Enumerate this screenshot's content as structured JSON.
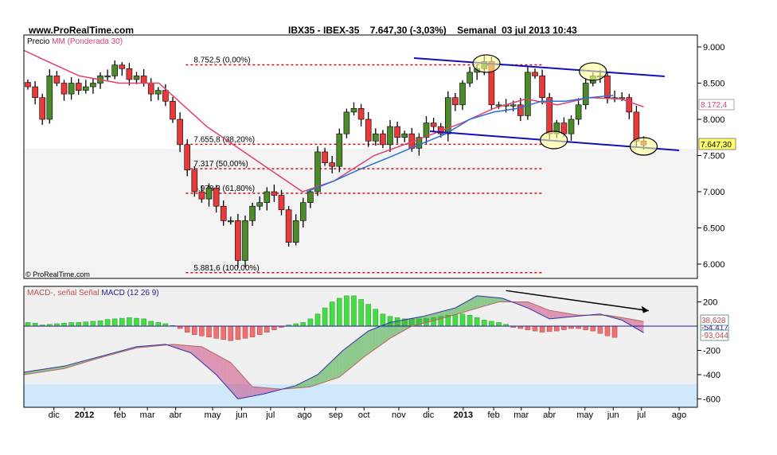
{
  "header": {
    "site": "www.ProRealTime.com",
    "title": "IBX35 - IBEX-35    7.647,30 (-3,03%)    Semanal  03 jul 2013 10:43"
  },
  "price_panel": {
    "legend_prefix": "Precio",
    "legend_ma": "MM (Ponderada 30)",
    "watermark": "© ProRealTime.com",
    "ma_tag": "8.172,4",
    "price_tag": "7.647,30"
  },
  "macd_panel": {
    "legend_a": "MACD-, señal Señal",
    "legend_b": "MACD (12 26 9)",
    "tag_signal": "38,628",
    "tag_macd": "-54,417",
    "tag_hist": "-93,044"
  },
  "colors": {
    "up": "#4c8a2a",
    "down": "#e83a3a",
    "ma": "#e0406e",
    "ma2": "#2a6fd6",
    "trend": "#1010c0",
    "fib": "#d01010",
    "hist_up": "#44dd44",
    "hist_down": "#f07070"
  },
  "chart_data": [
    {
      "type": "candlestick",
      "title": "IBX35 - IBEX-35 Semanal",
      "ylim": [
        5800,
        9100
      ],
      "y_ticks": [
        {
          "v": 9000,
          "label": "9.000"
        },
        {
          "v": 8500,
          "label": "8.500"
        },
        {
          "v": 8000,
          "label": "8.000"
        },
        {
          "v": 7500,
          "label": "7.500"
        },
        {
          "v": 7000,
          "label": "7.000"
        },
        {
          "v": 6500,
          "label": "6.500"
        },
        {
          "v": 6000,
          "label": "6.000"
        }
      ],
      "x_ticks": [
        {
          "w": 3.6,
          "label": "dic"
        },
        {
          "w": 7.8,
          "label": "2012",
          "bold": true
        },
        {
          "w": 12.7,
          "label": "feb"
        },
        {
          "w": 16.5,
          "label": "mar"
        },
        {
          "w": 20.4,
          "label": "abr"
        },
        {
          "w": 25.5,
          "label": "may"
        },
        {
          "w": 29.5,
          "label": "jun"
        },
        {
          "w": 33.5,
          "label": "jul"
        },
        {
          "w": 38.2,
          "label": "ago"
        },
        {
          "w": 42.5,
          "label": "sep"
        },
        {
          "w": 46.4,
          "label": "oct"
        },
        {
          "w": 51.2,
          "label": "nov"
        },
        {
          "w": 55.3,
          "label": "dic"
        },
        {
          "w": 60.1,
          "label": "2013",
          "bold": true
        },
        {
          "w": 64.3,
          "label": "feb"
        },
        {
          "w": 68.1,
          "label": "mar"
        },
        {
          "w": 72,
          "label": "abr"
        },
        {
          "w": 76.9,
          "label": "may"
        },
        {
          "w": 80.8,
          "label": "jun"
        },
        {
          "w": 84.7,
          "label": "jul"
        },
        {
          "w": 89.9,
          "label": "ago"
        }
      ],
      "closes": [
        8450,
        8300,
        8000,
        8600,
        8500,
        8350,
        8500,
        8400,
        8450,
        8500,
        8600,
        8600,
        8750,
        8700,
        8550,
        8600,
        8500,
        8350,
        8400,
        8250,
        8000,
        7650,
        7300,
        7000,
        6900,
        7050,
        6800,
        6600,
        6600,
        6050,
        6600,
        6800,
        6850,
        7000,
        6950,
        6750,
        6300,
        6600,
        6850,
        7000,
        7550,
        7400,
        7350,
        7800,
        8100,
        8150,
        8000,
        7700,
        7800,
        7650,
        7900,
        7750,
        7800,
        7600,
        7750,
        7950,
        7900,
        7800,
        8300,
        8200,
        8500,
        8650,
        8700,
        8800,
        8200,
        8200,
        8200,
        8200,
        8050,
        8650,
        8600,
        8300,
        7800,
        7950,
        7800,
        8000,
        8200,
        8500,
        8600,
        8600,
        8300,
        8300,
        8300,
        8100,
        7700,
        7647.3
      ],
      "ma_weighted_30": [
        [
          -0.5,
          8950
        ],
        [
          2.7,
          8800
        ],
        [
          7.1,
          8600
        ],
        [
          12.6,
          8500
        ],
        [
          18.1,
          8500
        ],
        [
          21.4,
          8200
        ],
        [
          24.7,
          7900
        ],
        [
          29.1,
          7600
        ],
        [
          33.5,
          7300
        ],
        [
          37.9,
          7000
        ],
        [
          42.3,
          7150
        ],
        [
          47.8,
          7500
        ],
        [
          53.3,
          7700
        ],
        [
          59.9,
          7950
        ],
        [
          64.3,
          8150
        ],
        [
          68.7,
          8280
        ],
        [
          73.1,
          8200
        ],
        [
          77.5,
          8300
        ],
        [
          81.9,
          8280
        ],
        [
          85,
          8172.4
        ]
      ],
      "ma_blue": [
        [
          38.5,
          7000
        ],
        [
          42.3,
          7150
        ],
        [
          45.6,
          7300
        ],
        [
          50,
          7480
        ],
        [
          53.3,
          7620
        ],
        [
          57.7,
          7800
        ],
        [
          61,
          8000
        ],
        [
          64.3,
          8100
        ],
        [
          67.6,
          8150
        ],
        [
          70.9,
          8250
        ],
        [
          74.2,
          8250
        ],
        [
          77.5,
          8300
        ],
        [
          80.8,
          8330
        ]
      ],
      "fibonacci": [
        {
          "v": 8752.5,
          "label": "8.752,5 (0,00%)"
        },
        {
          "v": 7655.8,
          "label": "7.655,8 (38,20%)"
        },
        {
          "v": 7317,
          "label": "7.317 (50,00%)"
        },
        {
          "v": 6978.3,
          "label": "6.978,3 (61,80%)"
        },
        {
          "v": 5881.6,
          "label": "5.881,6 (100,00%)"
        }
      ],
      "fib_range_weeks": [
        21.8,
        71
      ],
      "trendlines": [
        [
          [
            53.3,
            8846
          ],
          [
            87.9,
            8593
          ]
        ],
        [
          [
            55.5,
            7835
          ],
          [
            89.9,
            7571
          ]
        ]
      ],
      "ellipses": [
        [
          63.3,
          8770
        ],
        [
          78,
          8660
        ],
        [
          72.6,
          7714
        ],
        [
          85,
          7626
        ]
      ]
    },
    {
      "type": "macd",
      "ylim": [
        -650,
        280
      ],
      "y_ticks": [
        {
          "v": 200,
          "label": "200"
        },
        {
          "v": -200,
          "label": "-200"
        },
        {
          "v": -400,
          "label": "-400"
        },
        {
          "v": -600,
          "label": "-600"
        }
      ],
      "histogram": [
        30,
        25,
        10,
        15,
        20,
        25,
        30,
        30,
        35,
        40,
        45,
        55,
        60,
        65,
        70,
        65,
        60,
        40,
        30,
        20,
        5,
        -20,
        -50,
        -70,
        -80,
        -90,
        -100,
        -110,
        -120,
        -110,
        -100,
        -90,
        -70,
        -50,
        -30,
        -10,
        10,
        20,
        30,
        60,
        100,
        150,
        200,
        230,
        250,
        250,
        220,
        180,
        140,
        100,
        80,
        70,
        60,
        60,
        60,
        65,
        70,
        80,
        90,
        95,
        100,
        90,
        70,
        50,
        40,
        30,
        15,
        -10,
        -20,
        -30,
        -40,
        -50,
        -45,
        -40,
        -30,
        -20,
        -20,
        -30,
        -40,
        -60,
        -80,
        -93
      ],
      "macd": [
        [
          -0.5,
          -380
        ],
        [
          5,
          -330
        ],
        [
          10,
          -250
        ],
        [
          15,
          -170
        ],
        [
          19,
          -150
        ],
        [
          22.5,
          -220
        ],
        [
          26,
          -400
        ],
        [
          29,
          -600
        ],
        [
          32.5,
          -560
        ],
        [
          37,
          -490
        ],
        [
          40,
          -400
        ],
        [
          43.5,
          -200
        ],
        [
          47,
          -40
        ],
        [
          50,
          30
        ],
        [
          54.5,
          80
        ],
        [
          59,
          150
        ],
        [
          62,
          250
        ],
        [
          65.5,
          230
        ],
        [
          69,
          150
        ],
        [
          72,
          60
        ],
        [
          75.5,
          80
        ],
        [
          79,
          100
        ],
        [
          82,
          50
        ],
        [
          85,
          -54.4
        ]
      ],
      "signal": [
        [
          -0.5,
          -400
        ],
        [
          5,
          -350
        ],
        [
          10,
          -260
        ],
        [
          15,
          -180
        ],
        [
          20,
          -150
        ],
        [
          24,
          -170
        ],
        [
          28,
          -300
        ],
        [
          31,
          -500
        ],
        [
          35,
          -520
        ],
        [
          39,
          -500
        ],
        [
          43,
          -420
        ],
        [
          46.5,
          -250
        ],
        [
          50,
          -100
        ],
        [
          53,
          0
        ],
        [
          57,
          60
        ],
        [
          61,
          130
        ],
        [
          65,
          200
        ],
        [
          69,
          200
        ],
        [
          72,
          130
        ],
        [
          76,
          90
        ],
        [
          80,
          90
        ],
        [
          83,
          60
        ],
        [
          85,
          38.6
        ]
      ],
      "arrow": [
        [
          66,
          293
        ],
        [
          85.7,
          127
        ]
      ]
    }
  ]
}
